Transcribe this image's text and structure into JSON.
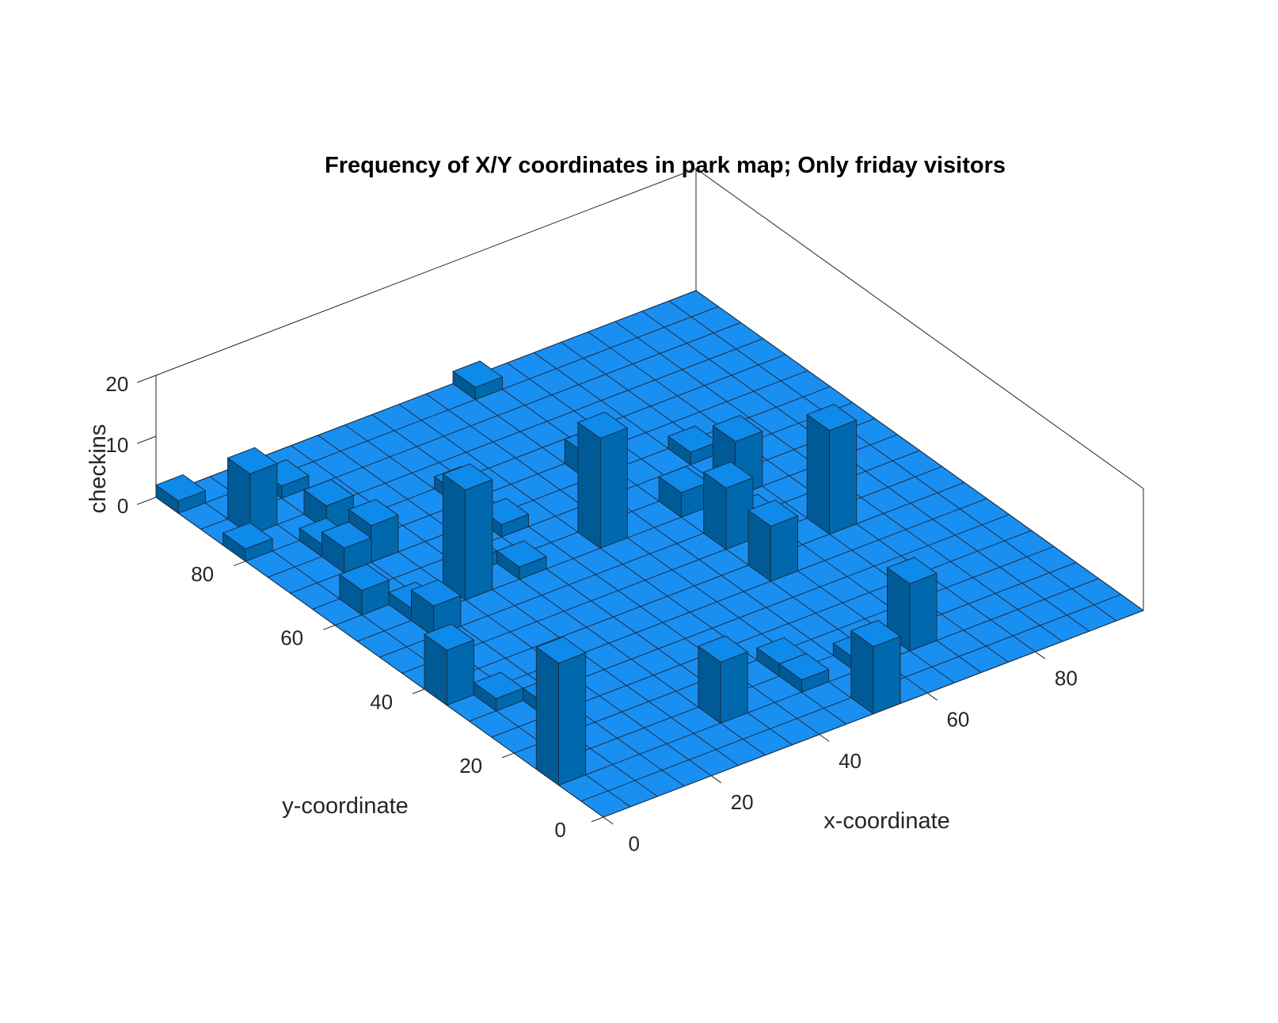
{
  "chart_data": {
    "type": "bar3",
    "title": "Frequency of X/Y coordinates in park map; Only friday visitors",
    "xlabel": "x-coordinate",
    "ylabel": "y-coordinate",
    "zlabel": "checkins",
    "xlim": [
      0,
      100
    ],
    "ylim": [
      0,
      100
    ],
    "zlim": [
      0,
      20
    ],
    "bin_size": 5,
    "xticks": [
      0,
      20,
      40,
      60,
      80
    ],
    "yticks": [
      0,
      20,
      40,
      60,
      80
    ],
    "zticks": [
      0,
      10,
      20
    ],
    "color": "#1a8ff2",
    "bars": [
      {
        "x": 0,
        "y": 10,
        "z": 20
      },
      {
        "x": 0,
        "y": 35,
        "z": 9
      },
      {
        "x": 5,
        "y": 30,
        "z": 2
      },
      {
        "x": 10,
        "y": 25,
        "z": 2
      },
      {
        "x": 30,
        "y": 10,
        "z": 10
      },
      {
        "x": 50,
        "y": 0,
        "z": 11
      },
      {
        "x": 45,
        "y": 10,
        "z": 2
      },
      {
        "x": 55,
        "y": 10,
        "z": 2
      },
      {
        "x": 65,
        "y": 10,
        "z": 11
      },
      {
        "x": 60,
        "y": 35,
        "z": 9
      },
      {
        "x": 60,
        "y": 45,
        "z": 10
      },
      {
        "x": 75,
        "y": 40,
        "z": 17
      },
      {
        "x": 65,
        "y": 45,
        "z": 3
      },
      {
        "x": 70,
        "y": 55,
        "z": 9
      },
      {
        "x": 60,
        "y": 55,
        "z": 4
      },
      {
        "x": 70,
        "y": 65,
        "z": 2
      },
      {
        "x": 55,
        "y": 70,
        "z": 4
      },
      {
        "x": 45,
        "y": 55,
        "z": 18
      },
      {
        "x": 25,
        "y": 60,
        "z": 2
      },
      {
        "x": 30,
        "y": 55,
        "z": 2
      },
      {
        "x": 35,
        "y": 65,
        "z": 2
      },
      {
        "x": 5,
        "y": 60,
        "z": 4
      },
      {
        "x": 10,
        "y": 70,
        "z": 4
      },
      {
        "x": 5,
        "y": 85,
        "z": 10
      },
      {
        "x": 0,
        "y": 80,
        "z": 2
      },
      {
        "x": 10,
        "y": 50,
        "z": 5
      },
      {
        "x": 10,
        "y": 55,
        "z": 2
      },
      {
        "x": 10,
        "y": 75,
        "z": 2
      },
      {
        "x": 15,
        "y": 70,
        "z": 6
      },
      {
        "x": 15,
        "y": 80,
        "z": 4
      },
      {
        "x": 20,
        "y": 55,
        "z": 18
      },
      {
        "x": 0,
        "y": 95,
        "z": 2
      },
      {
        "x": 15,
        "y": 90,
        "z": 2
      },
      {
        "x": 55,
        "y": 95,
        "z": 2
      },
      {
        "x": 45,
        "y": 15,
        "z": 2
      },
      {
        "x": 35,
        "y": 75,
        "z": 2
      }
    ]
  }
}
